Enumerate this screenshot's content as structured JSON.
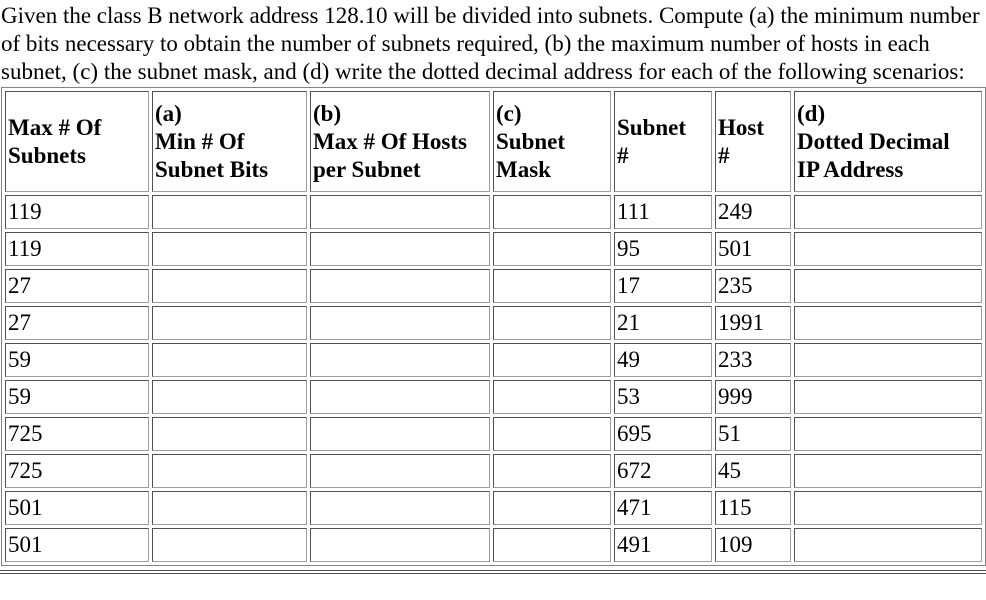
{
  "intro": "Given the class B network address 128.10 will be divided into subnets. Compute (a) the minimum number of bits necessary to obtain the number of subnets required, (b) the maximum number of hosts in each subnet, (c) the subnet mask, and (d) write the dotted decimal address for each of the following scenarios:",
  "table": {
    "headers": [
      "Max # Of\nSubnets",
      "(a)\nMin # Of\nSubnet Bits",
      "(b)\nMax # Of Hosts\nper Subnet",
      "(c)\nSubnet\nMask",
      "Subnet\n#",
      "Host\n#",
      "(d)\nDotted Decimal\nIP Address"
    ],
    "rows": [
      [
        "119",
        "",
        "",
        "",
        "111",
        "249",
        ""
      ],
      [
        "119",
        "",
        "",
        "",
        "95",
        "501",
        ""
      ],
      [
        "27",
        "",
        "",
        "",
        "17",
        "235",
        ""
      ],
      [
        "27",
        "",
        "",
        "",
        "21",
        "1991",
        ""
      ],
      [
        "59",
        "",
        "",
        "",
        "49",
        "233",
        ""
      ],
      [
        "59",
        "",
        "",
        "",
        "53",
        "999",
        ""
      ],
      [
        "725",
        "",
        "",
        "",
        "695",
        "51",
        ""
      ],
      [
        "725",
        "",
        "",
        "",
        "672",
        "45",
        ""
      ],
      [
        "501",
        "",
        "",
        "",
        "471",
        "115",
        ""
      ],
      [
        "501",
        "",
        "",
        "",
        "491",
        "109",
        ""
      ]
    ]
  }
}
